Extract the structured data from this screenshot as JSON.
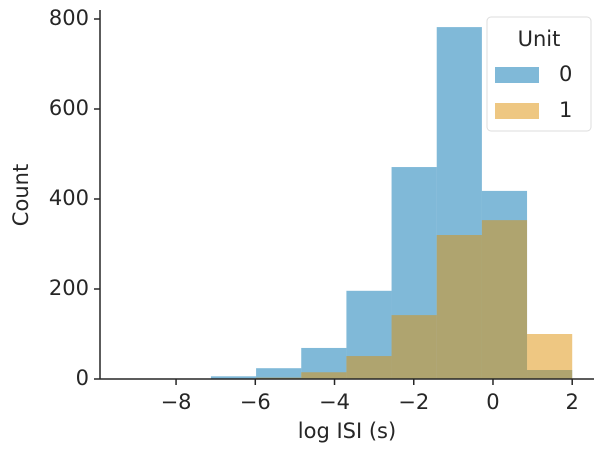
{
  "chart_data": {
    "type": "histogram",
    "xlabel": "log ISI (s)",
    "ylabel": "Count",
    "bins": [
      -9.4,
      -8.26,
      -7.12,
      -5.98,
      -4.84,
      -3.7,
      -2.56,
      -1.42,
      -0.28,
      0.86,
      2.0
    ],
    "series": [
      {
        "name": "0",
        "color": "#0173b2",
        "values": [
          1,
          1,
          6,
          24,
          69,
          196,
          471,
          782,
          418,
          20
        ]
      },
      {
        "name": "1",
        "color": "#de8f05",
        "values": [
          0,
          0,
          0,
          3,
          15,
          51,
          142,
          320,
          353,
          100
        ]
      }
    ],
    "xlim": [
      -9.92,
      2.55
    ],
    "ylim": [
      0,
      820
    ],
    "xticks": [
      {
        "value": -8,
        "label": "−8"
      },
      {
        "value": -6,
        "label": "−6"
      },
      {
        "value": -4,
        "label": "−4"
      },
      {
        "value": -2,
        "label": "−2"
      },
      0,
      2
    ],
    "yticks": [
      0,
      200,
      400,
      600,
      800
    ],
    "legend": {
      "title": "Unit",
      "loc": "upper right"
    }
  }
}
